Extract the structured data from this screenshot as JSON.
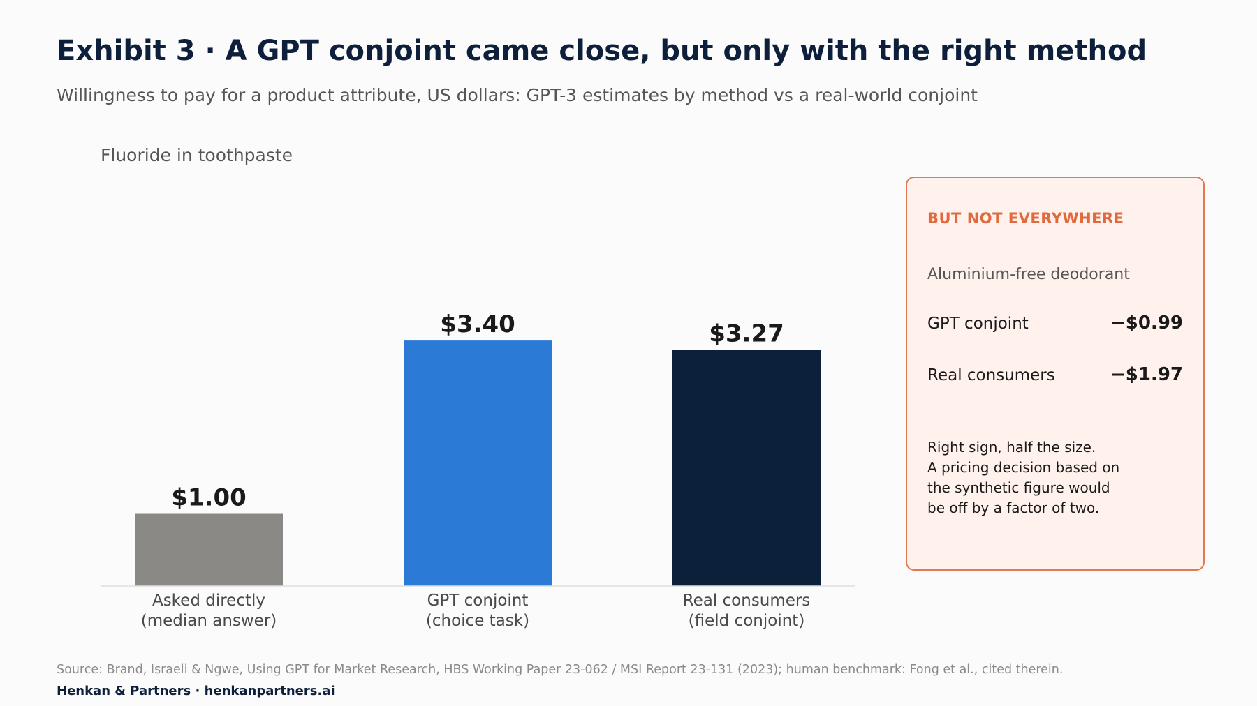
{
  "header": {
    "title": "Exhibit 3 · A GPT conjoint came close, but only with the right method",
    "subtitle": "Willingness to pay for a product attribute, US dollars: GPT-3 estimates by method vs a real-world conjoint"
  },
  "chart_data": {
    "type": "bar",
    "title": "Fluoride in toothpaste",
    "categories": [
      [
        "Asked directly",
        "(median answer)"
      ],
      [
        "GPT conjoint",
        "(choice task)"
      ],
      [
        "Real consumers",
        "(field conjoint)"
      ]
    ],
    "values": [
      1.0,
      3.4,
      3.27
    ],
    "value_labels": [
      "$1.00",
      "$3.40",
      "$3.27"
    ],
    "colors": [
      "#8a8985",
      "#2b7ad6",
      "#0c1f3b"
    ],
    "ylim": [
      0,
      3.6
    ],
    "grid": false,
    "legend": "none"
  },
  "callout": {
    "heading": "BUT NOT EVERYWHERE",
    "product": "Aluminium-free deodorant",
    "rows": [
      {
        "label": "GPT conjoint",
        "value": "−$0.99"
      },
      {
        "label": "Real consumers",
        "value": "−$1.97"
      }
    ],
    "note": [
      "Right sign, half the size.",
      "A pricing decision based on",
      "the synthetic figure would",
      "be off by a factor of two."
    ]
  },
  "footer": {
    "source": "Source: Brand, Israeli & Ngwe, Using GPT for Market Research, HBS Working Paper 23-062 / MSI Report 23-131 (2023); human benchmark: Fong et al., cited therein.",
    "brand": "Henkan & Partners · henkanpartners.ai"
  }
}
